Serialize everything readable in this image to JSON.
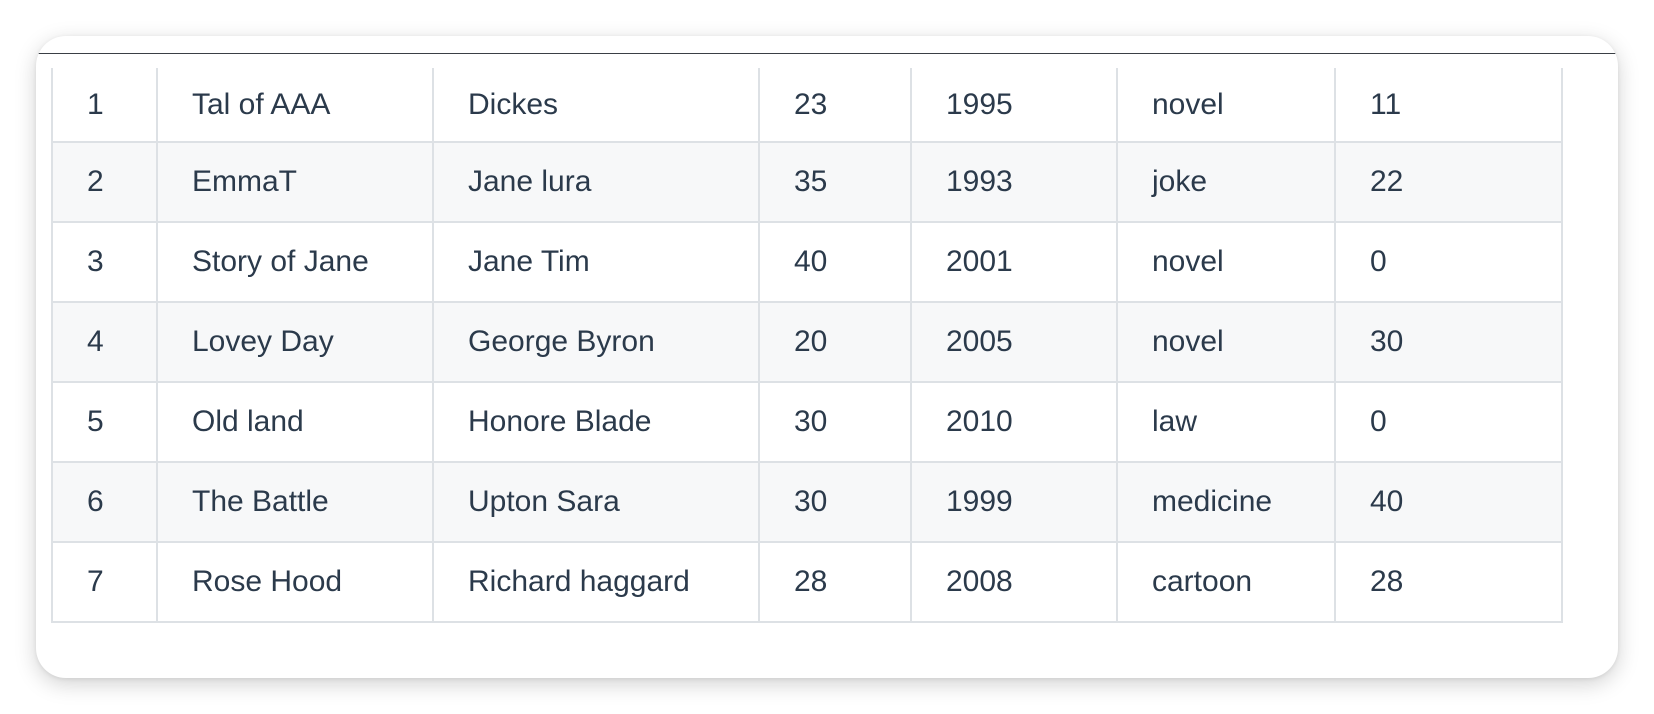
{
  "table": {
    "rows": [
      [
        "1",
        "Tal of AAA",
        "Dickes",
        "23",
        "1995",
        "novel",
        "11"
      ],
      [
        "2",
        "EmmaT",
        "Jane lura",
        "35",
        "1993",
        "joke",
        "22"
      ],
      [
        "3",
        "Story of Jane",
        "Jane Tim",
        "40",
        "2001",
        "novel",
        "0"
      ],
      [
        "4",
        "Lovey Day",
        "George Byron",
        "20",
        "2005",
        "novel",
        "30"
      ],
      [
        "5",
        "Old land",
        "Honore Blade",
        "30",
        "2010",
        "law",
        "0"
      ],
      [
        "6",
        "The Battle",
        "Upton Sara",
        "30",
        "1999",
        "medicine",
        "40"
      ],
      [
        "7",
        "Rose Hood",
        "Richard haggard",
        "28",
        "2008",
        "cartoon",
        "28"
      ]
    ]
  },
  "colors": {
    "text": "#2b3a4b",
    "border": "#dde1e5",
    "stripe": "#f7f8f9"
  }
}
